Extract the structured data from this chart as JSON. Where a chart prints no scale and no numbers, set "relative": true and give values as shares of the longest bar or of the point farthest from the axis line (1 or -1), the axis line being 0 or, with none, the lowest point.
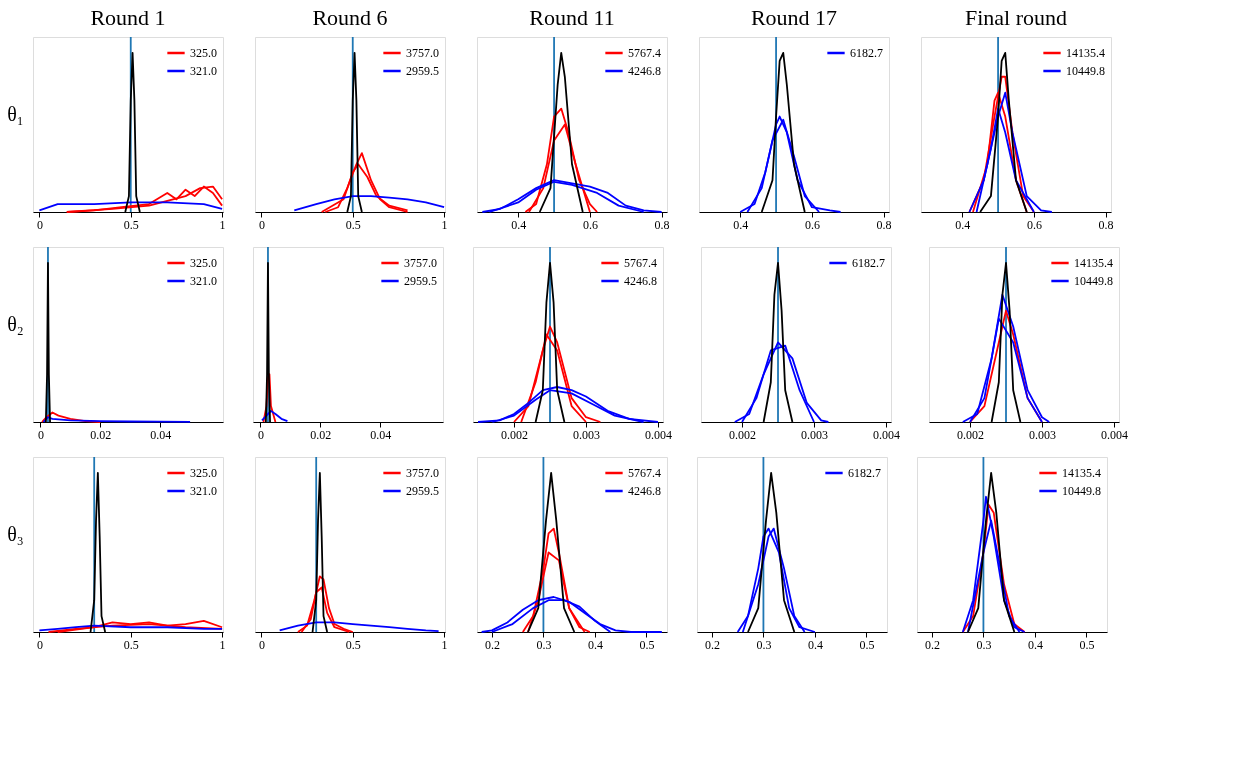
{
  "chart_data": [
    {
      "type": "line",
      "relative": true,
      "tick_labels": "x",
      "title": "Round 1",
      "ylabel": "θ₁",
      "legend": "top right",
      "xlim": [
        -0.035,
        1.005
      ],
      "xticks": [
        0,
        0.5,
        1
      ],
      "ref_lines": [
        {
          "axis": "x",
          "value": 0.5,
          "color": "#1f77b4"
        }
      ],
      "series": [
        {
          "name": "325.0",
          "color": "#ff0000",
          "x": [
            0.15,
            0.3,
            0.45,
            0.6,
            0.7,
            0.75,
            0.8,
            0.85,
            0.9,
            0.95,
            1.0
          ],
          "values": [
            0,
            0.01,
            0.03,
            0.05,
            0.12,
            0.08,
            0.14,
            0.1,
            0.16,
            0.12,
            0.04
          ]
        },
        {
          "color": "#ff0000",
          "x": [
            0.15,
            0.4,
            0.6,
            0.7,
            0.8,
            0.88,
            0.95,
            1.0
          ],
          "values": [
            0,
            0.02,
            0.04,
            0.07,
            0.1,
            0.15,
            0.16,
            0.08
          ]
        },
        {
          "name": "321.0",
          "color": "#0000ff",
          "x": [
            0,
            0.1,
            0.3,
            0.5,
            0.7,
            0.9,
            1.0
          ],
          "values": [
            0.01,
            0.05,
            0.05,
            0.06,
            0.06,
            0.05,
            0.02
          ]
        },
        {
          "color": "#000000",
          "x": [
            0.47,
            0.49,
            0.5,
            0.51,
            0.52,
            0.53,
            0.55
          ],
          "values": [
            0,
            0.1,
            0.7,
            1,
            0.7,
            0.1,
            0
          ]
        }
      ]
    },
    {
      "type": "line",
      "relative": true,
      "tick_labels": "x",
      "title": "Round 6",
      "legend": "top right",
      "xlim": [
        -0.035,
        1.005
      ],
      "xticks": [
        0,
        0.5,
        1
      ],
      "ref_lines": [
        {
          "axis": "x",
          "value": 0.5,
          "color": "#1f77b4"
        }
      ],
      "series": [
        {
          "name": "3757.0",
          "color": "#ff0000",
          "x": [
            0.35,
            0.42,
            0.47,
            0.52,
            0.55,
            0.6,
            0.65,
            0.7,
            0.8
          ],
          "values": [
            0,
            0.03,
            0.15,
            0.3,
            0.37,
            0.2,
            0.08,
            0.03,
            0
          ]
        },
        {
          "color": "#ff0000",
          "x": [
            0.33,
            0.45,
            0.5,
            0.53,
            0.58,
            0.63,
            0.7,
            0.8
          ],
          "values": [
            0,
            0.08,
            0.25,
            0.3,
            0.22,
            0.1,
            0.04,
            0.01
          ]
        },
        {
          "name": "2959.5",
          "color": "#0000ff",
          "x": [
            0.18,
            0.3,
            0.4,
            0.5,
            0.6,
            0.7,
            0.8,
            0.9,
            1.0
          ],
          "values": [
            0.01,
            0.05,
            0.08,
            0.1,
            0.1,
            0.09,
            0.08,
            0.06,
            0.03
          ]
        },
        {
          "color": "#000000",
          "x": [
            0.47,
            0.49,
            0.5,
            0.51,
            0.52,
            0.53,
            0.55
          ],
          "values": [
            0,
            0.1,
            0.7,
            1,
            0.7,
            0.1,
            0
          ]
        }
      ]
    },
    {
      "type": "line",
      "relative": true,
      "tick_labels": "x",
      "title": "Round 11",
      "legend": "top right",
      "xlim": [
        0.285,
        0.815
      ],
      "xticks": [
        0.4,
        0.6,
        0.8
      ],
      "ref_lines": [
        {
          "axis": "x",
          "value": 0.5,
          "color": "#1f77b4"
        }
      ],
      "series": [
        {
          "name": "5767.4",
          "color": "#ff0000",
          "x": [
            0.42,
            0.45,
            0.48,
            0.5,
            0.52,
            0.54,
            0.57,
            0.6,
            0.62
          ],
          "values": [
            0,
            0.05,
            0.3,
            0.6,
            0.65,
            0.5,
            0.2,
            0.05,
            0
          ]
        },
        {
          "color": "#ff0000",
          "x": [
            0.43,
            0.47,
            0.5,
            0.53,
            0.56,
            0.6
          ],
          "values": [
            0,
            0.15,
            0.45,
            0.55,
            0.3,
            0
          ]
        },
        {
          "name": "4246.8",
          "color": "#0000ff",
          "x": [
            0.3,
            0.35,
            0.4,
            0.45,
            0.5,
            0.55,
            0.6,
            0.65,
            0.7,
            0.75,
            0.8
          ],
          "values": [
            0,
            0.02,
            0.08,
            0.15,
            0.2,
            0.18,
            0.16,
            0.12,
            0.04,
            0.01,
            0
          ]
        },
        {
          "color": "#0000ff",
          "x": [
            0.32,
            0.4,
            0.45,
            0.5,
            0.55,
            0.62,
            0.68,
            0.75
          ],
          "values": [
            0,
            0.06,
            0.14,
            0.19,
            0.17,
            0.12,
            0.04,
            0
          ]
        },
        {
          "color": "#000000",
          "x": [
            0.46,
            0.49,
            0.51,
            0.52,
            0.53,
            0.55,
            0.58
          ],
          "values": [
            0,
            0.15,
            0.8,
            1,
            0.85,
            0.3,
            0
          ]
        }
      ]
    },
    {
      "type": "line",
      "relative": true,
      "tick_labels": "x",
      "title": "Round 17",
      "legend": "top right",
      "xlim": [
        0.285,
        0.815
      ],
      "xticks": [
        0.4,
        0.6,
        0.8
      ],
      "ref_lines": [
        {
          "axis": "x",
          "value": 0.5,
          "color": "#1f77b4"
        }
      ],
      "series": [
        {
          "name": "6182.7",
          "color": "#0000ff",
          "x": [
            0.4,
            0.44,
            0.47,
            0.5,
            0.51,
            0.53,
            0.56,
            0.6,
            0.65,
            0.68
          ],
          "values": [
            0,
            0.05,
            0.25,
            0.55,
            0.6,
            0.5,
            0.2,
            0.03,
            0.01,
            0
          ]
        },
        {
          "color": "#0000ff",
          "x": [
            0.42,
            0.46,
            0.49,
            0.52,
            0.55,
            0.58,
            0.62
          ],
          "values": [
            0,
            0.15,
            0.45,
            0.58,
            0.35,
            0.1,
            0
          ]
        },
        {
          "color": "#000000",
          "x": [
            0.46,
            0.49,
            0.5,
            0.51,
            0.52,
            0.53,
            0.55,
            0.58
          ],
          "values": [
            0,
            0.2,
            0.6,
            0.95,
            1,
            0.8,
            0.3,
            0
          ]
        }
      ]
    },
    {
      "type": "line",
      "relative": true,
      "tick_labels": "x",
      "title": "Final round",
      "legend": "top right",
      "xlim": [
        0.285,
        0.815
      ],
      "xticks": [
        0.4,
        0.6,
        0.8
      ],
      "ref_lines": [
        {
          "axis": "x",
          "value": 0.5,
          "color": "#1f77b4"
        }
      ],
      "series": [
        {
          "name": "14135.4",
          "color": "#ff0000",
          "x": [
            0.42,
            0.46,
            0.49,
            0.51,
            0.52,
            0.54,
            0.57,
            0.6
          ],
          "values": [
            0,
            0.2,
            0.6,
            0.85,
            0.85,
            0.5,
            0.1,
            0
          ]
        },
        {
          "color": "#ff0000",
          "x": [
            0.43,
            0.47,
            0.49,
            0.5,
            0.52,
            0.55,
            0.58
          ],
          "values": [
            0,
            0.3,
            0.7,
            0.75,
            0.6,
            0.2,
            0
          ]
        },
        {
          "name": "10449.8",
          "color": "#0000ff",
          "x": [
            0.42,
            0.46,
            0.5,
            0.52,
            0.54,
            0.58,
            0.62,
            0.65
          ],
          "values": [
            0,
            0.2,
            0.6,
            0.75,
            0.5,
            0.1,
            0.01,
            0
          ]
        },
        {
          "color": "#0000ff",
          "x": [
            0.44,
            0.48,
            0.5,
            0.52,
            0.55,
            0.6
          ],
          "values": [
            0,
            0.4,
            0.65,
            0.5,
            0.2,
            0
          ]
        },
        {
          "color": "#000000",
          "x": [
            0.45,
            0.48,
            0.5,
            0.51,
            0.52,
            0.53,
            0.55,
            0.58
          ],
          "values": [
            0,
            0.1,
            0.6,
            0.95,
            1,
            0.7,
            0.2,
            0
          ]
        }
      ]
    },
    {
      "type": "line",
      "relative": true,
      "tick_labels": "x",
      "ylabel": "θ₂",
      "legend": "top right",
      "xlim": [
        -0.0025,
        0.061
      ],
      "xticks": [
        0,
        0.02,
        0.04
      ],
      "ref_lines": [
        {
          "axis": "x",
          "value": 0.0025,
          "color": "#1f77b4"
        }
      ],
      "series": [
        {
          "name": "325.0",
          "color": "#ff0000",
          "x": [
            0.0005,
            0.002,
            0.004,
            0.006,
            0.01,
            0.015,
            0.02
          ],
          "values": [
            0,
            0.03,
            0.06,
            0.04,
            0.02,
            0.005,
            0
          ]
        },
        {
          "name": "321.0",
          "color": "#0000ff",
          "x": [
            0.001,
            0.002,
            0.0025,
            0.004,
            0.01,
            0.02,
            0.03,
            0.04,
            0.05
          ],
          "values": [
            0,
            0.02,
            0.03,
            0.02,
            0.01,
            0.005,
            0.003,
            0.002,
            0.001
          ]
        },
        {
          "color": "#000000",
          "x": [
            0.0018,
            0.0022,
            0.0025,
            0.0028,
            0.0032
          ],
          "values": [
            0,
            0.3,
            1,
            0.3,
            0
          ]
        }
      ]
    },
    {
      "type": "line",
      "relative": true,
      "tick_labels": "x",
      "legend": "top right",
      "xlim": [
        -0.0025,
        0.061
      ],
      "xticks": [
        0,
        0.02,
        0.04
      ],
      "ref_lines": [
        {
          "axis": "x",
          "value": 0.0025,
          "color": "#1f77b4"
        }
      ],
      "series": [
        {
          "name": "3757.0",
          "color": "#ff0000",
          "x": [
            0.001,
            0.002,
            0.0025,
            0.003,
            0.0035,
            0.005
          ],
          "values": [
            0,
            0.1,
            0.28,
            0.3,
            0.1,
            0
          ]
        },
        {
          "name": "2959.5",
          "color": "#0000ff",
          "x": [
            0.0005,
            0.002,
            0.0035,
            0.005,
            0.007,
            0.009
          ],
          "values": [
            0.01,
            0.04,
            0.07,
            0.05,
            0.02,
            0.005
          ]
        },
        {
          "color": "#000000",
          "x": [
            0.0018,
            0.0022,
            0.0025,
            0.0028,
            0.0032
          ],
          "values": [
            0,
            0.3,
            1,
            0.3,
            0
          ]
        }
      ]
    },
    {
      "type": "line",
      "relative": true,
      "tick_labels": "x",
      "legend": "top right",
      "xlim": [
        0.00143,
        0.00407
      ],
      "xticks": [
        0.002,
        0.003,
        0.004
      ],
      "ref_lines": [
        {
          "axis": "x",
          "value": 0.0025,
          "color": "#1f77b4"
        }
      ],
      "series": [
        {
          "name": "5767.4",
          "color": "#ff0000",
          "x": [
            0.002,
            0.0022,
            0.0024,
            0.0025,
            0.0026,
            0.0028,
            0.003,
            0.0032
          ],
          "values": [
            0,
            0.1,
            0.45,
            0.6,
            0.5,
            0.15,
            0.03,
            0
          ]
        },
        {
          "color": "#ff0000",
          "x": [
            0.0021,
            0.0023,
            0.00245,
            0.0026,
            0.0028,
            0.003
          ],
          "values": [
            0,
            0.25,
            0.55,
            0.45,
            0.1,
            0
          ]
        },
        {
          "name": "4246.8",
          "color": "#0000ff",
          "x": [
            0.0015,
            0.0018,
            0.002,
            0.0022,
            0.0024,
            0.0026,
            0.0028,
            0.003,
            0.0033,
            0.0036,
            0.004
          ],
          "values": [
            0,
            0.01,
            0.05,
            0.12,
            0.2,
            0.22,
            0.2,
            0.16,
            0.07,
            0.02,
            0
          ]
        },
        {
          "color": "#0000ff",
          "x": [
            0.0017,
            0.002,
            0.0023,
            0.0025,
            0.0028,
            0.0031,
            0.0034,
            0.0038
          ],
          "values": [
            0,
            0.04,
            0.14,
            0.2,
            0.18,
            0.11,
            0.04,
            0
          ]
        },
        {
          "color": "#000000",
          "x": [
            0.0023,
            0.0024,
            0.00245,
            0.0025,
            0.00255,
            0.0026,
            0.0027
          ],
          "values": [
            0,
            0.2,
            0.75,
            1,
            0.75,
            0.2,
            0
          ]
        }
      ]
    },
    {
      "type": "line",
      "relative": true,
      "tick_labels": "x",
      "legend": "top right",
      "xlim": [
        0.00143,
        0.00407
      ],
      "xticks": [
        0.002,
        0.003,
        0.004
      ],
      "ref_lines": [
        {
          "axis": "x",
          "value": 0.0025,
          "color": "#1f77b4"
        }
      ],
      "series": [
        {
          "name": "6182.7",
          "color": "#0000ff",
          "x": [
            0.0019,
            0.0021,
            0.0023,
            0.0025,
            0.0027,
            0.0029,
            0.0031,
            0.0032
          ],
          "values": [
            0,
            0.05,
            0.3,
            0.5,
            0.4,
            0.12,
            0.01,
            0
          ]
        },
        {
          "color": "#0000ff",
          "x": [
            0.002,
            0.0022,
            0.0024,
            0.0026,
            0.0028,
            0.003
          ],
          "values": [
            0,
            0.15,
            0.45,
            0.48,
            0.2,
            0
          ]
        },
        {
          "color": "#000000",
          "x": [
            0.0023,
            0.0024,
            0.00245,
            0.0025,
            0.00255,
            0.0026,
            0.0027
          ],
          "values": [
            0,
            0.25,
            0.8,
            1,
            0.7,
            0.2,
            0
          ]
        }
      ]
    },
    {
      "type": "line",
      "relative": true,
      "tick_labels": "x",
      "legend": "top right",
      "xlim": [
        0.00143,
        0.00407
      ],
      "xticks": [
        0.002,
        0.003,
        0.004
      ],
      "ref_lines": [
        {
          "axis": "x",
          "value": 0.0025,
          "color": "#1f77b4"
        }
      ],
      "series": [
        {
          "name": "14135.4",
          "color": "#ff0000",
          "x": [
            0.002,
            0.0022,
            0.0024,
            0.0025,
            0.0026,
            0.0028,
            0.003
          ],
          "values": [
            0,
            0.1,
            0.5,
            0.7,
            0.55,
            0.15,
            0
          ]
        },
        {
          "name": "10449.8",
          "color": "#0000ff",
          "x": [
            0.0019,
            0.0021,
            0.0023,
            0.00245,
            0.0026,
            0.0028,
            0.003,
            0.0031
          ],
          "values": [
            0,
            0.05,
            0.4,
            0.8,
            0.6,
            0.2,
            0.03,
            0
          ]
        },
        {
          "color": "#0000ff",
          "x": [
            0.002,
            0.0022,
            0.0024,
            0.0026,
            0.0028,
            0.003
          ],
          "values": [
            0,
            0.15,
            0.65,
            0.5,
            0.15,
            0
          ]
        },
        {
          "color": "#000000",
          "x": [
            0.0023,
            0.0024,
            0.00245,
            0.0025,
            0.00255,
            0.0026,
            0.0027
          ],
          "values": [
            0,
            0.25,
            0.8,
            1,
            0.7,
            0.2,
            0
          ]
        }
      ]
    },
    {
      "type": "line",
      "relative": true,
      "tick_labels": "x",
      "ylabel": "θ₃",
      "legend": "top right",
      "xlim": [
        -0.035,
        1.005
      ],
      "xticks": [
        0,
        0.5,
        1
      ],
      "ref_lines": [
        {
          "axis": "x",
          "value": 0.3,
          "color": "#1f77b4"
        }
      ],
      "series": [
        {
          "name": "325.0",
          "color": "#ff0000",
          "x": [
            0.1,
            0.3,
            0.4,
            0.5,
            0.6,
            0.7,
            0.8,
            0.9,
            1.0
          ],
          "values": [
            0,
            0.03,
            0.06,
            0.05,
            0.06,
            0.04,
            0.05,
            0.07,
            0.03
          ]
        },
        {
          "color": "#ff0000",
          "x": [
            0.05,
            0.2,
            0.4,
            0.6,
            0.8,
            1.0
          ],
          "values": [
            0,
            0.02,
            0.04,
            0.05,
            0.03,
            0.02
          ]
        },
        {
          "name": "321.0",
          "color": "#0000ff",
          "x": [
            0,
            0.1,
            0.2,
            0.3,
            0.5,
            0.7,
            0.9,
            1.0
          ],
          "values": [
            0.01,
            0.02,
            0.03,
            0.04,
            0.03,
            0.03,
            0.02,
            0.02
          ]
        },
        {
          "color": "#000000",
          "x": [
            0.28,
            0.3,
            0.31,
            0.32,
            0.33,
            0.34,
            0.36
          ],
          "values": [
            0,
            0.2,
            0.7,
            1,
            0.6,
            0.1,
            0
          ]
        }
      ]
    },
    {
      "type": "line",
      "relative": true,
      "tick_labels": "x",
      "legend": "top right",
      "xlim": [
        -0.035,
        1.005
      ],
      "xticks": [
        0,
        0.5,
        1
      ],
      "ref_lines": [
        {
          "axis": "x",
          "value": 0.3,
          "color": "#1f77b4"
        }
      ],
      "series": [
        {
          "name": "3757.0",
          "color": "#ff0000",
          "x": [
            0.2,
            0.25,
            0.29,
            0.32,
            0.34,
            0.37,
            0.4,
            0.45,
            0.5
          ],
          "values": [
            0,
            0.04,
            0.2,
            0.35,
            0.33,
            0.15,
            0.05,
            0.02,
            0
          ]
        },
        {
          "color": "#ff0000",
          "x": [
            0.22,
            0.27,
            0.3,
            0.33,
            0.36,
            0.4,
            0.48
          ],
          "values": [
            0,
            0.08,
            0.25,
            0.28,
            0.12,
            0.03,
            0
          ]
        },
        {
          "name": "2959.5",
          "color": "#0000ff",
          "x": [
            0.1,
            0.2,
            0.3,
            0.4,
            0.5,
            0.6,
            0.7,
            0.8,
            0.9,
            0.97
          ],
          "values": [
            0.01,
            0.04,
            0.06,
            0.06,
            0.05,
            0.04,
            0.03,
            0.02,
            0.01,
            0.005
          ]
        },
        {
          "color": "#000000",
          "x": [
            0.28,
            0.3,
            0.31,
            0.32,
            0.33,
            0.34,
            0.36
          ],
          "values": [
            0,
            0.2,
            0.7,
            1,
            0.6,
            0.1,
            0
          ]
        }
      ]
    },
    {
      "type": "line",
      "relative": true,
      "tick_labels": "x",
      "legend": "top right",
      "xlim": [
        0.171,
        0.54
      ],
      "xticks": [
        0.2,
        0.3,
        0.4,
        0.5
      ],
      "ref_lines": [
        {
          "axis": "x",
          "value": 0.3,
          "color": "#1f77b4"
        }
      ],
      "series": [
        {
          "name": "5767.4",
          "color": "#ff0000",
          "x": [
            0.26,
            0.28,
            0.3,
            0.31,
            0.32,
            0.33,
            0.35,
            0.37,
            0.39
          ],
          "values": [
            0,
            0.1,
            0.4,
            0.62,
            0.65,
            0.5,
            0.15,
            0.03,
            0
          ]
        },
        {
          "color": "#ff0000",
          "x": [
            0.27,
            0.29,
            0.31,
            0.33,
            0.35,
            0.38
          ],
          "values": [
            0,
            0.2,
            0.5,
            0.45,
            0.15,
            0
          ]
        },
        {
          "name": "4246.8",
          "color": "#0000ff",
          "x": [
            0.18,
            0.2,
            0.23,
            0.26,
            0.29,
            0.32,
            0.35,
            0.38,
            0.41,
            0.44,
            0.47,
            0.53
          ],
          "values": [
            0,
            0.01,
            0.06,
            0.14,
            0.2,
            0.22,
            0.19,
            0.12,
            0.05,
            0.01,
            0,
            0
          ]
        },
        {
          "color": "#0000ff",
          "x": [
            0.2,
            0.24,
            0.28,
            0.31,
            0.34,
            0.37,
            0.4,
            0.43
          ],
          "values": [
            0,
            0.05,
            0.15,
            0.2,
            0.2,
            0.16,
            0.07,
            0
          ]
        },
        {
          "color": "#000000",
          "x": [
            0.27,
            0.29,
            0.305,
            0.315,
            0.325,
            0.34,
            0.36
          ],
          "values": [
            0,
            0.15,
            0.7,
            1,
            0.7,
            0.15,
            0
          ]
        }
      ]
    },
    {
      "type": "line",
      "relative": true,
      "tick_labels": "x",
      "legend": "top right",
      "xlim": [
        0.171,
        0.54
      ],
      "xticks": [
        0.2,
        0.3,
        0.4,
        0.5
      ],
      "ref_lines": [
        {
          "axis": "x",
          "value": 0.3,
          "color": "#1f77b4"
        }
      ],
      "series": [
        {
          "name": "6182.7",
          "color": "#0000ff",
          "x": [
            0.25,
            0.27,
            0.29,
            0.3,
            0.31,
            0.33,
            0.35,
            0.37,
            0.4
          ],
          "values": [
            0,
            0.1,
            0.4,
            0.6,
            0.65,
            0.5,
            0.15,
            0.03,
            0
          ]
        },
        {
          "color": "#0000ff",
          "x": [
            0.26,
            0.29,
            0.31,
            0.32,
            0.34,
            0.36,
            0.38
          ],
          "values": [
            0,
            0.3,
            0.6,
            0.65,
            0.4,
            0.1,
            0
          ]
        },
        {
          "color": "#000000",
          "x": [
            0.27,
            0.29,
            0.305,
            0.315,
            0.325,
            0.34,
            0.36
          ],
          "values": [
            0,
            0.15,
            0.7,
            1,
            0.75,
            0.2,
            0
          ]
        }
      ]
    },
    {
      "type": "line",
      "relative": true,
      "tick_labels": "x",
      "legend": "top right",
      "xlim": [
        0.171,
        0.54
      ],
      "xticks": [
        0.2,
        0.3,
        0.4,
        0.5
      ],
      "ref_lines": [
        {
          "axis": "x",
          "value": 0.3,
          "color": "#1f77b4"
        }
      ],
      "series": [
        {
          "name": "14135.4",
          "color": "#ff0000",
          "x": [
            0.26,
            0.28,
            0.3,
            0.31,
            0.32,
            0.34,
            0.36,
            0.38
          ],
          "values": [
            0,
            0.1,
            0.5,
            0.8,
            0.75,
            0.3,
            0.05,
            0
          ]
        },
        {
          "name": "10449.8",
          "color": "#0000ff",
          "x": [
            0.26,
            0.28,
            0.3,
            0.305,
            0.32,
            0.34,
            0.36,
            0.38
          ],
          "values": [
            0,
            0.2,
            0.7,
            0.85,
            0.6,
            0.2,
            0.03,
            0
          ]
        },
        {
          "color": "#0000ff",
          "x": [
            0.27,
            0.3,
            0.315,
            0.33,
            0.35,
            0.37
          ],
          "values": [
            0,
            0.5,
            0.7,
            0.45,
            0.1,
            0
          ]
        },
        {
          "color": "#000000",
          "x": [
            0.27,
            0.29,
            0.305,
            0.315,
            0.325,
            0.34,
            0.36
          ],
          "values": [
            0,
            0.15,
            0.7,
            1,
            0.75,
            0.2,
            0
          ]
        }
      ]
    }
  ]
}
